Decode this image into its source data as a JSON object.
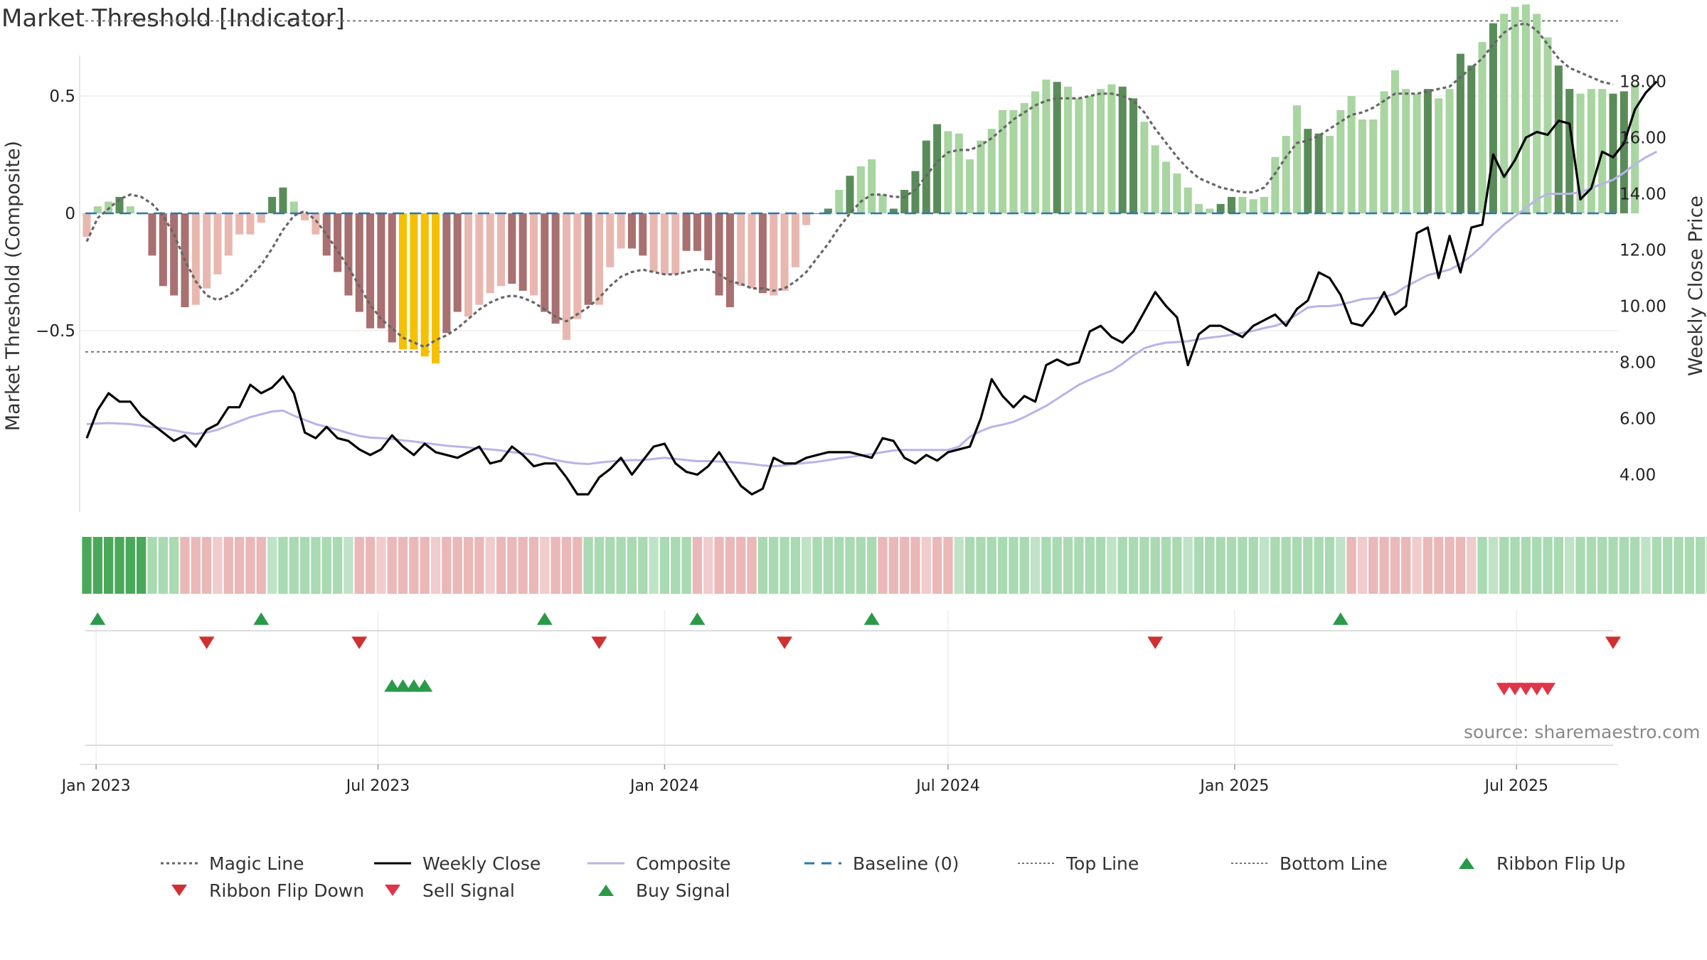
{
  "title": "Market Threshold [Indicator]",
  "source": "source: sharemaestro.com",
  "colors": {
    "dark_green": "#5a8c5a",
    "light_green": "#a8d5a0",
    "dark_red": "#a87070",
    "light_red": "#e8b8b0",
    "gold": "#f5c000",
    "weekly_close": "#000000",
    "composite_line": "#b8b4e8",
    "magic_line": "#666666",
    "baseline": "#2a77b0",
    "threshold_lines": "#777777",
    "signal_up": "#2a9a48",
    "signal_down": "#d03030",
    "sell_signal": "#e03448"
  },
  "chart_data": {
    "type": "bar",
    "title": "Market Threshold [Indicator]",
    "ylabel": "Market Threshold (Composite)",
    "y2label": "Weekly Close Price",
    "ylim": [
      -0.98,
      1.0
    ],
    "y2lim": [
      2.6,
      20.0
    ],
    "yticks": [
      0.5,
      0,
      -0.5
    ],
    "yticklabels": [
      "0.5",
      "0",
      "−0.5"
    ],
    "y2ticks": [
      4,
      6,
      8,
      10,
      12,
      14,
      16,
      18
    ],
    "y2ticklabels": [
      "4.00",
      "6.00",
      "8.00",
      "10.00",
      "12.00",
      "14.00",
      "16.00",
      "18.00"
    ],
    "top_line": 0.82,
    "bottom_line": -0.59,
    "x_start": "2022-12-26",
    "week_count": 141,
    "xticks": [
      "2023-01-01",
      "2023-07-01",
      "2024-01-01",
      "2024-07-01",
      "2025-01-01",
      "2025-07-01"
    ],
    "xticklabels": [
      "Jan 2023",
      "Jul 2023",
      "Jan 2024",
      "Jul 2024",
      "Jan 2025",
      "Jul 2025"
    ],
    "composite_histogram": [
      -0.1,
      0.03,
      0.05,
      0.07,
      0.03,
      0.0,
      -0.18,
      -0.31,
      -0.35,
      -0.4,
      -0.39,
      -0.32,
      -0.26,
      -0.18,
      -0.09,
      -0.09,
      -0.04,
      0.07,
      0.11,
      0.05,
      -0.03,
      -0.09,
      -0.18,
      -0.25,
      -0.35,
      -0.42,
      -0.49,
      -0.49,
      -0.55,
      -0.58,
      -0.58,
      -0.61,
      -0.64,
      -0.51,
      -0.42,
      -0.44,
      -0.39,
      -0.34,
      -0.31,
      -0.3,
      -0.33,
      -0.35,
      -0.42,
      -0.47,
      -0.54,
      -0.45,
      -0.39,
      -0.39,
      -0.23,
      -0.15,
      -0.15,
      -0.18,
      -0.25,
      -0.26,
      -0.26,
      -0.16,
      -0.16,
      -0.2,
      -0.35,
      -0.4,
      -0.31,
      -0.32,
      -0.34,
      -0.35,
      -0.33,
      -0.23,
      -0.05,
      0.0,
      0.02,
      0.1,
      0.16,
      0.2,
      0.23,
      0.08,
      0.02,
      0.1,
      0.18,
      0.31,
      0.38,
      0.35,
      0.34,
      0.23,
      0.31,
      0.36,
      0.44,
      0.44,
      0.47,
      0.52,
      0.57,
      0.56,
      0.54,
      0.49,
      0.5,
      0.53,
      0.55,
      0.54,
      0.49,
      0.39,
      0.29,
      0.22,
      0.17,
      0.11,
      0.04,
      0.02,
      0.04,
      0.07,
      0.07,
      0.06,
      0.07,
      0.24,
      0.33,
      0.46,
      0.36,
      0.34,
      0.33,
      0.44,
      0.5,
      0.4,
      0.4,
      0.52,
      0.61,
      0.53,
      0.51,
      0.53,
      0.49,
      0.53,
      0.68,
      0.63,
      0.73,
      0.81,
      0.85,
      0.88,
      0.89,
      0.85,
      0.75,
      0.63,
      0.53,
      0.51,
      0.53,
      0.53,
      0.51,
      0.52,
      0.55
    ],
    "bar_colors": "RLLDLLDDDDLLLLLLLDDLRRDDDDDDDGGGGDDLLLLDDLDDLLDLLLDDLLLDDDDDLLDLLLLDDLDLLLDDDDDLLLLLLLLLLDLLLLLDDLLLLLLLDDLLLLLLDDLLLLLLLLLDLLDDLDLLLLLDDLLLDDLDDLLLLGGGGGGGGGLLLDDDDDD",
    "bar_color_key": {
      "D": "dark",
      "L": "light",
      "G": "gold"
    },
    "magic_line": [
      -0.12,
      -0.02,
      0.02,
      0.06,
      0.08,
      0.07,
      0.04,
      -0.01,
      -0.09,
      -0.2,
      -0.29,
      -0.35,
      -0.37,
      -0.35,
      -0.32,
      -0.27,
      -0.22,
      -0.15,
      -0.07,
      -0.01,
      0.01,
      -0.03,
      -0.09,
      -0.16,
      -0.23,
      -0.31,
      -0.39,
      -0.45,
      -0.49,
      -0.53,
      -0.55,
      -0.57,
      -0.54,
      -0.52,
      -0.49,
      -0.45,
      -0.41,
      -0.38,
      -0.36,
      -0.35,
      -0.36,
      -0.38,
      -0.41,
      -0.44,
      -0.46,
      -0.43,
      -0.4,
      -0.36,
      -0.31,
      -0.27,
      -0.25,
      -0.24,
      -0.25,
      -0.26,
      -0.26,
      -0.25,
      -0.24,
      -0.24,
      -0.26,
      -0.29,
      -0.3,
      -0.32,
      -0.32,
      -0.33,
      -0.32,
      -0.29,
      -0.25,
      -0.19,
      -0.13,
      -0.06,
      0.0,
      0.05,
      0.08,
      0.08,
      0.07,
      0.07,
      0.1,
      0.16,
      0.22,
      0.26,
      0.27,
      0.27,
      0.29,
      0.32,
      0.36,
      0.4,
      0.43,
      0.46,
      0.48,
      0.49,
      0.49,
      0.49,
      0.5,
      0.51,
      0.51,
      0.5,
      0.48,
      0.43,
      0.36,
      0.3,
      0.24,
      0.19,
      0.15,
      0.13,
      0.11,
      0.1,
      0.09,
      0.09,
      0.11,
      0.17,
      0.24,
      0.3,
      0.31,
      0.33,
      0.36,
      0.39,
      0.42,
      0.43,
      0.45,
      0.48,
      0.51,
      0.51,
      0.51,
      0.52,
      0.53,
      0.54,
      0.58,
      0.62,
      0.66,
      0.72,
      0.77,
      0.8,
      0.81,
      0.78,
      0.72,
      0.66,
      0.62,
      0.6,
      0.58,
      0.56,
      0.55
    ],
    "weekly_close": [
      5.3,
      6.3,
      6.9,
      6.6,
      6.6,
      6.1,
      5.8,
      5.5,
      5.2,
      5.4,
      5.0,
      5.6,
      5.8,
      6.4,
      6.4,
      7.2,
      6.9,
      7.1,
      7.5,
      6.9,
      5.5,
      5.3,
      5.7,
      5.3,
      5.2,
      4.9,
      4.7,
      4.9,
      5.4,
      5.0,
      4.7,
      5.1,
      4.8,
      4.7,
      4.6,
      4.8,
      5.0,
      4.4,
      4.5,
      5.0,
      4.7,
      4.3,
      4.4,
      4.4,
      3.9,
      3.3,
      3.3,
      3.9,
      4.2,
      4.6,
      4.0,
      4.5,
      5.0,
      5.1,
      4.4,
      4.1,
      4.0,
      4.3,
      4.8,
      4.2,
      3.6,
      3.3,
      3.5,
      4.6,
      4.4,
      4.4,
      4.6,
      4.7,
      4.8,
      4.8,
      4.8,
      4.7,
      4.6,
      5.3,
      5.2,
      4.6,
      4.4,
      4.7,
      4.5,
      4.8,
      4.9,
      5.0,
      6.0,
      7.4,
      6.8,
      6.4,
      6.8,
      6.6,
      7.9,
      8.1,
      7.9,
      8.0,
      9.1,
      9.3,
      8.9,
      8.7,
      9.1,
      9.8,
      10.5,
      10.0,
      9.6,
      7.9,
      9.0,
      9.3,
      9.3,
      9.1,
      8.9,
      9.3,
      9.5,
      9.7,
      9.3,
      9.9,
      10.2,
      11.2,
      11.0,
      10.4,
      9.4,
      9.3,
      9.8,
      10.5,
      9.7,
      10.0,
      12.6,
      12.8,
      11.0,
      12.5,
      11.2,
      12.8,
      12.9,
      15.4,
      14.6,
      15.2,
      16.0,
      16.2,
      16.1,
      16.6,
      16.5,
      13.8,
      14.2,
      15.5,
      15.3,
      15.8,
      17.0,
      17.6,
      18.0
    ],
    "composite_line_price": [
      5.8,
      5.82,
      5.84,
      5.82,
      5.8,
      5.75,
      5.7,
      5.65,
      5.58,
      5.5,
      5.45,
      5.5,
      5.6,
      5.75,
      5.9,
      6.05,
      6.15,
      6.25,
      6.28,
      6.1,
      5.95,
      5.8,
      5.7,
      5.6,
      5.48,
      5.38,
      5.32,
      5.3,
      5.27,
      5.22,
      5.18,
      5.13,
      5.08,
      5.03,
      5.0,
      4.97,
      4.93,
      4.9,
      4.86,
      4.8,
      4.76,
      4.72,
      4.62,
      4.52,
      4.45,
      4.4,
      4.38,
      4.43,
      4.47,
      4.5,
      4.52,
      4.52,
      4.56,
      4.6,
      4.56,
      4.52,
      4.48,
      4.48,
      4.47,
      4.45,
      4.42,
      4.38,
      4.33,
      4.3,
      4.33,
      4.38,
      4.42,
      4.46,
      4.52,
      4.58,
      4.63,
      4.68,
      4.73,
      4.8,
      4.86,
      4.88,
      4.88,
      4.88,
      4.88,
      4.88,
      5.0,
      5.35,
      5.55,
      5.7,
      5.78,
      5.88,
      6.05,
      6.25,
      6.45,
      6.7,
      6.95,
      7.2,
      7.38,
      7.55,
      7.7,
      7.95,
      8.25,
      8.5,
      8.62,
      8.7,
      8.72,
      8.75,
      8.82,
      8.88,
      8.92,
      8.98,
      9.05,
      9.12,
      9.22,
      9.3,
      9.45,
      9.7,
      9.95,
      10.0,
      10.0,
      10.05,
      10.15,
      10.25,
      10.28,
      10.32,
      10.45,
      10.7,
      10.9,
      11.1,
      11.2,
      11.3,
      11.5,
      11.8,
      12.15,
      12.55,
      12.9,
      13.2,
      13.5,
      13.8,
      14.0,
      14.0,
      14.0,
      14.05,
      14.2,
      14.35,
      14.5,
      14.75,
      15.05,
      15.3,
      15.5
    ],
    "ribbon": "GGGGGGLLLRRRRRRRRLLLLLLLLRRRRRRRRRRRRRRRRRRRRRLLLLLLLLLLRRRRRRLLLLLLLLLLLRRRRRRRLLLLLLLLLLLLLLLLLLLLLLLLLLLLLLLLLLLLRRRRRRRRRRRRLLLLLLLLLLLLLLLLLLLLLLLLLRRRRRRR",
    "ribbon_key": {
      "G": "strong green",
      "L": "light green",
      "R": "light red"
    },
    "ribbon_flip_up": [
      "2023-01-02",
      "2023-04-17",
      "2023-10-16",
      "2024-01-22",
      "2024-05-13",
      "2025-03-10"
    ],
    "ribbon_flip_down": [
      "2023-03-13",
      "2023-06-19",
      "2023-11-20",
      "2024-03-18",
      "2024-11-11",
      "2025-09-01"
    ],
    "buy_signal": [
      "2023-07-10",
      "2023-07-17",
      "2023-07-24",
      "2023-07-31"
    ],
    "sell_signal": [
      "2025-06-23",
      "2025-06-30",
      "2025-07-07",
      "2025-07-14",
      "2025-07-21"
    ],
    "legend": [
      {
        "key": "magic",
        "label": "Magic Line"
      },
      {
        "key": "weekly",
        "label": "Weekly Close"
      },
      {
        "key": "composite",
        "label": "Composite"
      },
      {
        "key": "baseline",
        "label": "Baseline (0)"
      },
      {
        "key": "top",
        "label": "Top Line"
      },
      {
        "key": "bottom",
        "label": "Bottom Line"
      },
      {
        "key": "flip_up",
        "label": "Ribbon Flip Up"
      },
      {
        "key": "flip_down",
        "label": "Ribbon Flip Down"
      },
      {
        "key": "sell",
        "label": "Sell Signal"
      },
      {
        "key": "buy",
        "label": "Buy Signal"
      }
    ],
    "grid": true,
    "legend_position": "bottom"
  }
}
